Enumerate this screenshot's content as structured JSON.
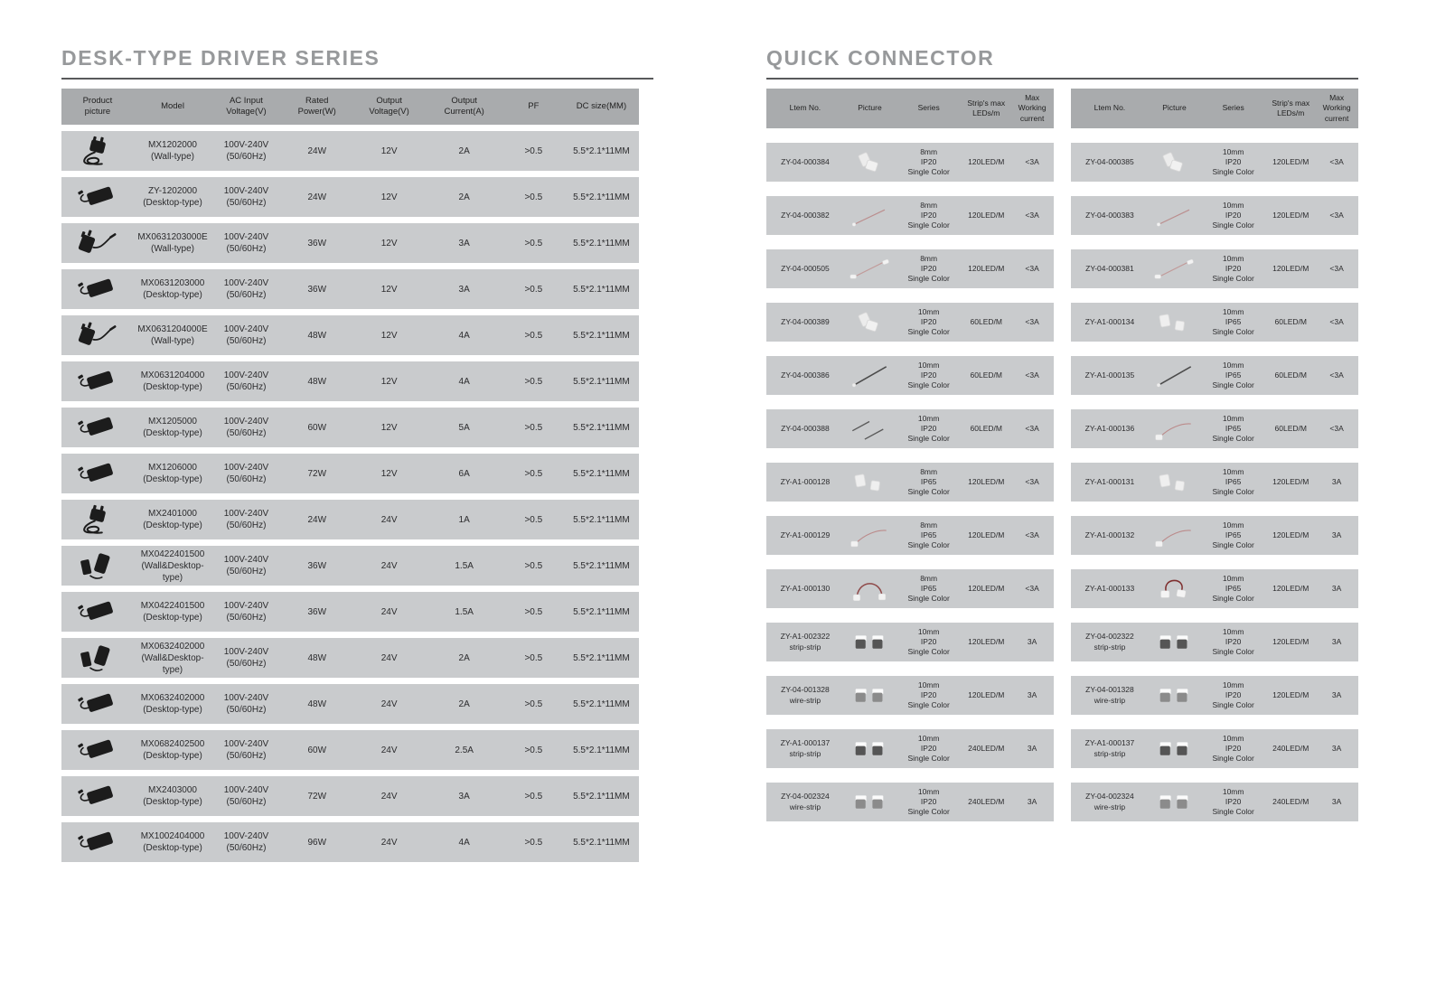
{
  "colors": {
    "header_bg": "#a9abad",
    "row_bg": "#c9cbcd",
    "title_gray": "#97999b",
    "rule_dark": "#58595b",
    "text": "#2b2b2d"
  },
  "left_section": {
    "title": "DESK-TYPE DRIVER SERIES",
    "table": {
      "headers": [
        "Product\npicture",
        "Model",
        "AC Input\nVoltage(V)",
        "Rated\nPower(W)",
        "Output\nVoltage(V)",
        "Output\nCurrent(A)",
        "PF",
        "DC size(MM)"
      ],
      "rows": [
        {
          "picture": "wall-coil",
          "model": "MX1202000",
          "type": "(Wall-type)",
          "ac1": "100V-240V",
          "ac2": "(50/60Hz)",
          "rated_power": "24W",
          "output_voltage": "12V",
          "output_current": "2A",
          "pf": ">0.5",
          "dc_size": "5.5*2.1*11MM"
        },
        {
          "picture": "desktop",
          "model": "ZY-1202000",
          "type": "(Desktop-type)",
          "ac1": "100V-240V",
          "ac2": "(50/60Hz)",
          "rated_power": "24W",
          "output_voltage": "12V",
          "output_current": "2A",
          "pf": ">0.5",
          "dc_size": "5.5*2.1*11MM"
        },
        {
          "picture": "wall",
          "model": "MX0631203000E",
          "type": "(Wall-type)",
          "ac1": "100V-240V",
          "ac2": "(50/60Hz)",
          "rated_power": "36W",
          "output_voltage": "12V",
          "output_current": "3A",
          "pf": ">0.5",
          "dc_size": "5.5*2.1*11MM"
        },
        {
          "picture": "desktop",
          "model": "MX0631203000",
          "type": "(Desktop-type)",
          "ac1": "100V-240V",
          "ac2": "(50/60Hz)",
          "rated_power": "36W",
          "output_voltage": "12V",
          "output_current": "3A",
          "pf": ">0.5",
          "dc_size": "5.5*2.1*11MM"
        },
        {
          "picture": "wall",
          "model": "MX0631204000E",
          "type": "(Wall-type)",
          "ac1": "100V-240V",
          "ac2": "(50/60Hz)",
          "rated_power": "48W",
          "output_voltage": "12V",
          "output_current": "4A",
          "pf": ">0.5",
          "dc_size": "5.5*2.1*11MM"
        },
        {
          "picture": "desktop",
          "model": "MX0631204000",
          "type": "(Desktop-type)",
          "ac1": "100V-240V",
          "ac2": "(50/60Hz)",
          "rated_power": "48W",
          "output_voltage": "12V",
          "output_current": "4A",
          "pf": ">0.5",
          "dc_size": "5.5*2.1*11MM"
        },
        {
          "picture": "desktop",
          "model": "MX1205000",
          "type": "(Desktop-type)",
          "ac1": "100V-240V",
          "ac2": "(50/60Hz)",
          "rated_power": "60W",
          "output_voltage": "12V",
          "output_current": "5A",
          "pf": ">0.5",
          "dc_size": "5.5*2.1*11MM"
        },
        {
          "picture": "desktop",
          "model": "MX1206000",
          "type": "(Desktop-type)",
          "ac1": "100V-240V",
          "ac2": "(50/60Hz)",
          "rated_power": "72W",
          "output_voltage": "12V",
          "output_current": "6A",
          "pf": ">0.5",
          "dc_size": "5.5*2.1*11MM"
        },
        {
          "picture": "wall-coil",
          "model": "MX2401000",
          "type": "(Desktop-type)",
          "ac1": "100V-240V",
          "ac2": "(50/60Hz)",
          "rated_power": "24W",
          "output_voltage": "24V",
          "output_current": "1A",
          "pf": ">0.5",
          "dc_size": "5.5*2.1*11MM"
        },
        {
          "picture": "combo",
          "model": "MX0422401500",
          "type": "(Wall&Desktop-type)",
          "ac1": "100V-240V",
          "ac2": "(50/60Hz)",
          "rated_power": "36W",
          "output_voltage": "24V",
          "output_current": "1.5A",
          "pf": ">0.5",
          "dc_size": "5.5*2.1*11MM"
        },
        {
          "picture": "desktop",
          "model": "MX0422401500",
          "type": "(Desktop-type)",
          "ac1": "100V-240V",
          "ac2": "(50/60Hz)",
          "rated_power": "36W",
          "output_voltage": "24V",
          "output_current": "1.5A",
          "pf": ">0.5",
          "dc_size": "5.5*2.1*11MM"
        },
        {
          "picture": "combo",
          "model": "MX0632402000",
          "type": "(Wall&Desktop-type)",
          "ac1": "100V-240V",
          "ac2": "(50/60Hz)",
          "rated_power": "48W",
          "output_voltage": "24V",
          "output_current": "2A",
          "pf": ">0.5",
          "dc_size": "5.5*2.1*11MM"
        },
        {
          "picture": "desktop",
          "model": "MX0632402000",
          "type": "(Desktop-type)",
          "ac1": "100V-240V",
          "ac2": "(50/60Hz)",
          "rated_power": "48W",
          "output_voltage": "24V",
          "output_current": "2A",
          "pf": ">0.5",
          "dc_size": "5.5*2.1*11MM"
        },
        {
          "picture": "desktop",
          "model": "MX0682402500",
          "type": "(Desktop-type)",
          "ac1": "100V-240V",
          "ac2": "(50/60Hz)",
          "rated_power": "60W",
          "output_voltage": "24V",
          "output_current": "2.5A",
          "pf": ">0.5",
          "dc_size": "5.5*2.1*11MM"
        },
        {
          "picture": "desktop",
          "model": "MX2403000",
          "type": "(Desktop-type)",
          "ac1": "100V-240V",
          "ac2": "(50/60Hz)",
          "rated_power": "72W",
          "output_voltage": "24V",
          "output_current": "3A",
          "pf": ">0.5",
          "dc_size": "5.5*2.1*11MM"
        },
        {
          "picture": "desktop",
          "model": "MX1002404000",
          "type": "(Desktop-type)",
          "ac1": "100V-240V",
          "ac2": "(50/60Hz)",
          "rated_power": "96W",
          "output_voltage": "24V",
          "output_current": "4A",
          "pf": ">0.5",
          "dc_size": "5.5*2.1*11MM"
        }
      ]
    }
  },
  "right_section": {
    "title": "QUICK CONNECTOR",
    "tables": [
      {
        "headers": [
          "Ltem  No.",
          "Picture",
          "Series",
          "Strip's max\nLEDs/m",
          "Max Working\ncurrent"
        ],
        "rows": [
          {
            "item_no": "ZY-04-000384",
            "item_sub": "",
            "picture": "clip",
            "series": [
              "8mm",
              "IP20",
              "Single Color"
            ],
            "max_leds": "120LED/M",
            "max_current": "<3A"
          },
          {
            "item_no": "ZY-04-000382",
            "item_sub": "",
            "picture": "wire-red",
            "series": [
              "8mm",
              "IP20",
              "Single Color"
            ],
            "max_leds": "120LED/M",
            "max_current": "<3A"
          },
          {
            "item_no": "ZY-04-000505",
            "item_sub": "",
            "picture": "wire-ends",
            "series": [
              "8mm",
              "IP20",
              "Single Color"
            ],
            "max_leds": "120LED/M",
            "max_current": "<3A"
          },
          {
            "item_no": "ZY-04-000389",
            "item_sub": "",
            "picture": "clip",
            "series": [
              "10mm",
              "IP20",
              "Single Color"
            ],
            "max_leds": "60LED/M",
            "max_current": "<3A"
          },
          {
            "item_no": "ZY-04-000386",
            "item_sub": "",
            "picture": "wire-dark",
            "series": [
              "10mm",
              "IP20",
              "Single Color"
            ],
            "max_leds": "60LED/M",
            "max_current": "<3A"
          },
          {
            "item_no": "ZY-04-000388",
            "item_sub": "",
            "picture": "wires-two",
            "series": [
              "10mm",
              "IP20",
              "Single Color"
            ],
            "max_leds": "60LED/M",
            "max_current": "<3A"
          },
          {
            "item_no": "ZY-A1-000128",
            "item_sub": "",
            "picture": "clips-pair",
            "series": [
              "8mm",
              "IP65",
              "Single Color"
            ],
            "max_leds": "120LED/M",
            "max_current": "<3A"
          },
          {
            "item_no": "ZY-A1-000129",
            "item_sub": "",
            "picture": "wire-conn",
            "series": [
              "8mm",
              "IP65",
              "Single Color"
            ],
            "max_leds": "120LED/M",
            "max_current": "<3A"
          },
          {
            "item_no": "ZY-A1-000130",
            "item_sub": "",
            "picture": "arc-wire",
            "series": [
              "8mm",
              "IP65",
              "Single Color"
            ],
            "max_leds": "120LED/M",
            "max_current": "<3A"
          },
          {
            "item_no": "ZY-A1-002322",
            "item_sub": "strip-strip",
            "picture": "blocks",
            "series": [
              "10mm",
              "IP20",
              "Single Color"
            ],
            "max_leds": "120LED/M",
            "max_current": "3A"
          },
          {
            "item_no": "ZY-04-001328",
            "item_sub": "wire-strip",
            "picture": "blocks2",
            "series": [
              "10mm",
              "IP20",
              "Single Color"
            ],
            "max_leds": "120LED/M",
            "max_current": "3A"
          },
          {
            "item_no": "ZY-A1-000137",
            "item_sub": "strip-strip",
            "picture": "blocks",
            "series": [
              "10mm",
              "IP20",
              "Single Color"
            ],
            "max_leds": "240LED/M",
            "max_current": "3A"
          },
          {
            "item_no": "ZY-04-002324",
            "item_sub": "wire-strip",
            "picture": "blocks2",
            "series": [
              "10mm",
              "IP20",
              "Single Color"
            ],
            "max_leds": "240LED/M",
            "max_current": "3A"
          }
        ]
      },
      {
        "headers": [
          "Ltem  No.",
          "Picture",
          "Series",
          "Strip's max\nLEDs/m",
          "Max Working\ncurrent"
        ],
        "rows": [
          {
            "item_no": "ZY-04-000385",
            "item_sub": "",
            "picture": "clip",
            "series": [
              "10mm",
              "IP20",
              "Single Color"
            ],
            "max_leds": "120LED/M",
            "max_current": "<3A"
          },
          {
            "item_no": "ZY-04-000383",
            "item_sub": "",
            "picture": "wire-red",
            "series": [
              "10mm",
              "IP20",
              "Single Color"
            ],
            "max_leds": "120LED/M",
            "max_current": "<3A"
          },
          {
            "item_no": "ZY-04-000381",
            "item_sub": "",
            "picture": "wire-ends",
            "series": [
              "10mm",
              "IP20",
              "Single Color"
            ],
            "max_leds": "120LED/M",
            "max_current": "<3A"
          },
          {
            "item_no": "ZY-A1-000134",
            "item_sub": "",
            "picture": "clips-pair",
            "series": [
              "10mm",
              "IP65",
              "Single Color"
            ],
            "max_leds": "60LED/M",
            "max_current": "<3A"
          },
          {
            "item_no": "ZY-A1-000135",
            "item_sub": "",
            "picture": "wire-dark",
            "series": [
              "10mm",
              "IP65",
              "Single Color"
            ],
            "max_leds": "60LED/M",
            "max_current": "<3A"
          },
          {
            "item_no": "ZY-A1-000136",
            "item_sub": "",
            "picture": "wire-conn",
            "series": [
              "10mm",
              "IP65",
              "Single Color"
            ],
            "max_leds": "60LED/M",
            "max_current": "<3A"
          },
          {
            "item_no": "ZY-A1-000131",
            "item_sub": "",
            "picture": "clips-pair",
            "series": [
              "10mm",
              "IP65",
              "Single Color"
            ],
            "max_leds": "120LED/M",
            "max_current": "3A"
          },
          {
            "item_no": "ZY-A1-000132",
            "item_sub": "",
            "picture": "wire-conn",
            "series": [
              "10mm",
              "IP65",
              "Single Color"
            ],
            "max_leds": "120LED/M",
            "max_current": "3A"
          },
          {
            "item_no": "ZY-A1-000133",
            "item_sub": "",
            "picture": "loop-wire",
            "series": [
              "10mm",
              "IP65",
              "Single Color"
            ],
            "max_leds": "120LED/M",
            "max_current": "3A"
          },
          {
            "item_no": "ZY-04-002322",
            "item_sub": "strip-strip",
            "picture": "blocks",
            "series": [
              "10mm",
              "IP20",
              "Single Color"
            ],
            "max_leds": "120LED/M",
            "max_current": "3A"
          },
          {
            "item_no": "ZY-04-001328",
            "item_sub": "wire-strip",
            "picture": "blocks2",
            "series": [
              "10mm",
              "IP20",
              "Single Color"
            ],
            "max_leds": "120LED/M",
            "max_current": "3A"
          },
          {
            "item_no": "ZY-A1-000137",
            "item_sub": "strip-strip",
            "picture": "blocks",
            "series": [
              "10mm",
              "IP20",
              "Single Color"
            ],
            "max_leds": "240LED/M",
            "max_current": "3A"
          },
          {
            "item_no": "ZY-04-002324",
            "item_sub": "wire-strip",
            "picture": "blocks2",
            "series": [
              "10mm",
              "IP20",
              "Single Color"
            ],
            "max_leds": "240LED/M",
            "max_current": "3A"
          }
        ]
      }
    ]
  }
}
